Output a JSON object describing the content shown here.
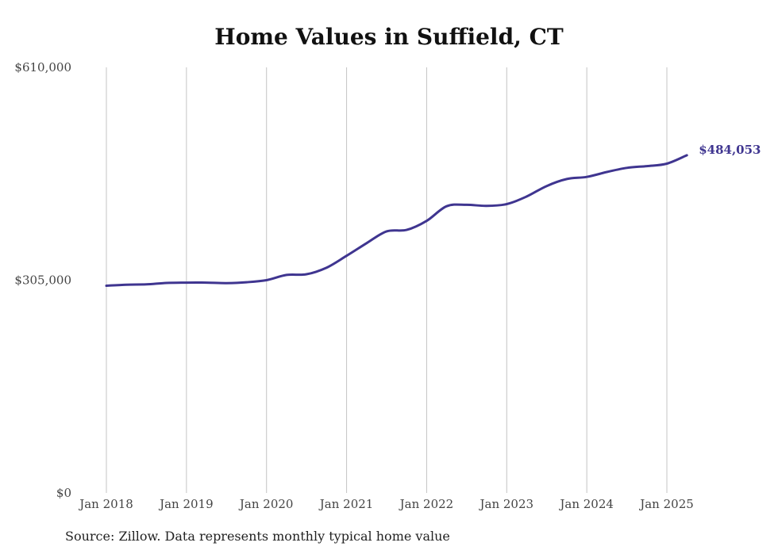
{
  "title": "Home Values in Suffield, CT",
  "source": "Source: Zillow. Data represents monthly typical home value",
  "chart_data": {
    "type": "line",
    "title": "Home Values in Suffield, CT",
    "xlabel": "",
    "ylabel": "",
    "ylim": [
      0,
      610000
    ],
    "y_ticks": [
      "$0",
      "$305,000",
      "$610,000"
    ],
    "x_ticks": [
      "Jan 2018",
      "Jan 2019",
      "Jan 2020",
      "Jan 2021",
      "Jan 2022",
      "Jan 2023",
      "Jan 2024",
      "Jan 2025"
    ],
    "grid": "vertical",
    "line_color": "#3f3590",
    "end_label": "$484,053",
    "series": [
      {
        "values": [
          {
            "x": "2018-01",
            "y": 297000
          },
          {
            "x": "2018-04",
            "y": 298500
          },
          {
            "x": "2018-07",
            "y": 299000
          },
          {
            "x": "2018-10",
            "y": 301000
          },
          {
            "x": "2019-01",
            "y": 301500
          },
          {
            "x": "2019-04",
            "y": 301500
          },
          {
            "x": "2019-07",
            "y": 300800
          },
          {
            "x": "2019-10",
            "y": 302000
          },
          {
            "x": "2020-01",
            "y": 305000
          },
          {
            "x": "2020-04",
            "y": 312500
          },
          {
            "x": "2020-07",
            "y": 313500
          },
          {
            "x": "2020-10",
            "y": 323000
          },
          {
            "x": "2021-01",
            "y": 340000
          },
          {
            "x": "2021-04",
            "y": 358000
          },
          {
            "x": "2021-07",
            "y": 375000
          },
          {
            "x": "2021-10",
            "y": 377000
          },
          {
            "x": "2022-01",
            "y": 390000
          },
          {
            "x": "2022-04",
            "y": 411000
          },
          {
            "x": "2022-07",
            "y": 413000
          },
          {
            "x": "2022-10",
            "y": 411500
          },
          {
            "x": "2023-01",
            "y": 414000
          },
          {
            "x": "2023-04",
            "y": 425000
          },
          {
            "x": "2023-07",
            "y": 440000
          },
          {
            "x": "2023-10",
            "y": 450000
          },
          {
            "x": "2024-01",
            "y": 453000
          },
          {
            "x": "2024-04",
            "y": 460000
          },
          {
            "x": "2024-07",
            "y": 466000
          },
          {
            "x": "2024-10",
            "y": 468500
          },
          {
            "x": "2025-01",
            "y": 472000
          },
          {
            "x": "2025-04",
            "y": 484053
          }
        ]
      }
    ]
  }
}
